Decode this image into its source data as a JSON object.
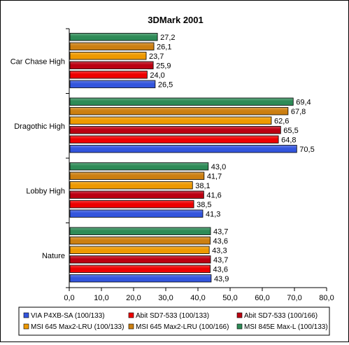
{
  "chart_data": {
    "type": "bar",
    "orientation": "horizontal",
    "title": "3DMark 2001",
    "categories": [
      "Nature",
      "Lobby High",
      "Dragothic High",
      "Car Chase High"
    ],
    "xlim": [
      0,
      80
    ],
    "xticks": [
      "0,0",
      "10,0",
      "20,0",
      "30,0",
      "40,0",
      "50,0",
      "60,0",
      "70,0",
      "80,0"
    ],
    "grid": false,
    "legend_position": "bottom",
    "series": [
      {
        "name": "VIA P4XB-SA (100/133)",
        "color": "#3355dd",
        "values": [
          43.9,
          41.3,
          70.5,
          26.5
        ],
        "labels": [
          "43,9",
          "41,3",
          "70,5",
          "26,5"
        ]
      },
      {
        "name": "Abit SD7-533 (100/133)",
        "color": "#ee0000",
        "values": [
          43.6,
          38.5,
          64.8,
          24.0
        ],
        "labels": [
          "43,6",
          "38,5",
          "64,8",
          "24,0"
        ]
      },
      {
        "name": "Abit SD7-533 (100/166)",
        "color": "#bb0011",
        "values": [
          43.7,
          41.6,
          65.5,
          25.9
        ],
        "labels": [
          "43,7",
          "41,6",
          "65,5",
          "25,9"
        ]
      },
      {
        "name": "MSI 645 Max2-LRU (100/133)",
        "color": "#ee9900",
        "values": [
          43.3,
          38.1,
          62.6,
          23.7
        ],
        "labels": [
          "43,3",
          "38,1",
          "62,6",
          "23,7"
        ]
      },
      {
        "name": "MSI 645 Max2-LRU (100/166)",
        "color": "#cc7f11",
        "values": [
          43.6,
          41.7,
          67.8,
          26.1
        ],
        "labels": [
          "43,6",
          "41,7",
          "67,8",
          "26,1"
        ]
      },
      {
        "name": "MSI 845E Max-L (100/133)",
        "color": "#2e8b57",
        "values": [
          43.7,
          43.0,
          69.4,
          27.2
        ],
        "labels": [
          "43,7",
          "43,0",
          "69,4",
          "27,2"
        ]
      }
    ]
  }
}
